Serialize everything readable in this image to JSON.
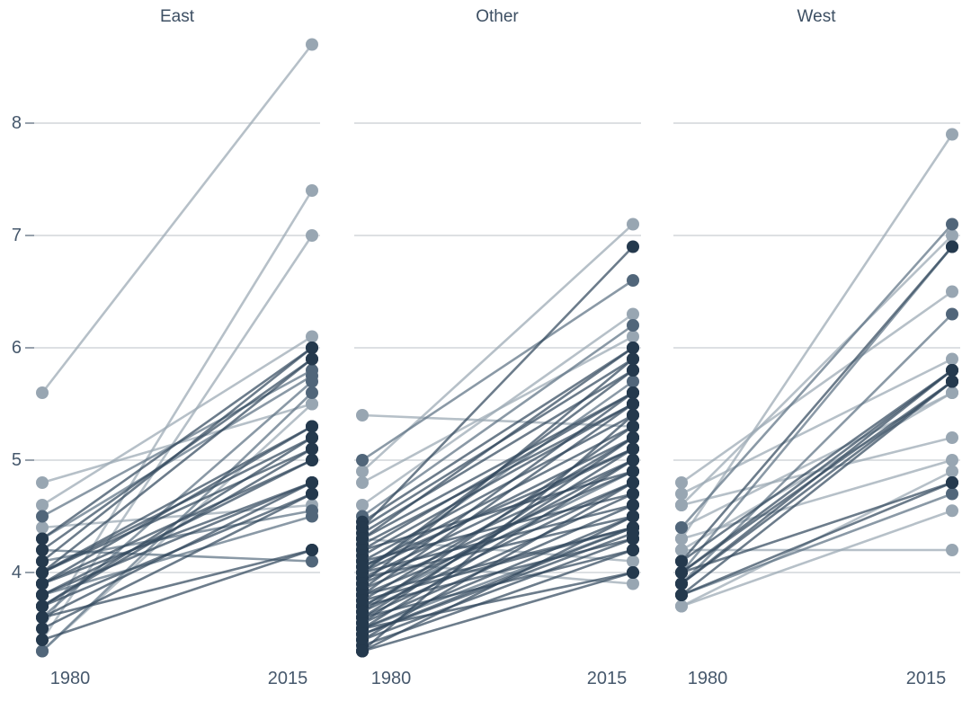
{
  "chart_data": {
    "type": "line",
    "subtype": "slopegraph",
    "title": "",
    "xlabel": "",
    "ylabel": "",
    "x_tick_labels": [
      "1980",
      "2015"
    ],
    "y_ticks": [
      4,
      5,
      6,
      7,
      8
    ],
    "ylim": [
      3.2,
      8.8
    ],
    "grid": "horizontal-only",
    "legend_position": "none",
    "shades": [
      "light",
      "mid",
      "dark"
    ],
    "colors": {
      "dot_light": "#98a6b2",
      "dot_mid": "#51667a",
      "dot_dark": "#24394d",
      "line_light": "#9aa8b3",
      "line_mid": "#5d7284",
      "line_dark": "#33495e",
      "gridline": "#d8dbdf",
      "tick_mark": "#97a1ac",
      "tick_label": "#46586c",
      "facet_title": "#3d4f63",
      "background": "#ffffff"
    },
    "facets": [
      {
        "name": "East",
        "lines": [
          [
            5.6,
            8.7,
            0
          ],
          [
            3.5,
            7.4,
            0
          ],
          [
            3.4,
            7.0,
            0
          ],
          [
            4.8,
            5.5,
            0
          ],
          [
            4.6,
            6.1,
            0
          ],
          [
            4.4,
            4.6,
            0
          ],
          [
            3.3,
            5.5,
            0
          ],
          [
            4.5,
            5.8,
            1
          ],
          [
            4.3,
            5.75,
            1
          ],
          [
            3.6,
            5.7,
            1
          ],
          [
            3.3,
            5.6,
            1
          ],
          [
            4.1,
            4.55,
            1
          ],
          [
            3.8,
            4.5,
            1
          ],
          [
            4.2,
            4.1,
            1
          ],
          [
            4.3,
            6.0,
            2
          ],
          [
            4.2,
            5.9,
            2
          ],
          [
            4.1,
            6.0,
            2
          ],
          [
            4.0,
            5.9,
            2
          ],
          [
            4.0,
            5.3,
            2
          ],
          [
            4.0,
            5.2,
            2
          ],
          [
            4.0,
            5.1,
            2
          ],
          [
            3.9,
            5.0,
            2
          ],
          [
            3.9,
            5.3,
            2
          ],
          [
            3.8,
            5.0,
            2
          ],
          [
            3.8,
            4.8,
            2
          ],
          [
            3.7,
            4.7,
            2
          ],
          [
            3.7,
            5.2,
            2
          ],
          [
            3.6,
            4.8,
            2
          ],
          [
            3.6,
            4.2,
            2
          ],
          [
            3.5,
            4.7,
            2
          ],
          [
            3.4,
            4.2,
            2
          ],
          [
            3.7,
            5.1,
            2
          ],
          [
            3.9,
            4.8,
            2
          ]
        ]
      },
      {
        "name": "Other",
        "lines": [
          [
            5.4,
            5.3,
            0
          ],
          [
            4.9,
            7.1,
            0
          ],
          [
            4.8,
            6.1,
            0
          ],
          [
            4.6,
            6.3,
            0
          ],
          [
            4.3,
            4.1,
            0
          ],
          [
            4.1,
            3.9,
            0
          ],
          [
            5.0,
            6.6,
            1
          ],
          [
            4.5,
            6.2,
            1
          ],
          [
            4.0,
            5.7,
            1
          ],
          [
            3.7,
            4.9,
            1
          ],
          [
            3.5,
            4.4,
            1
          ],
          [
            4.4,
            6.9,
            2
          ],
          [
            4.45,
            6.0,
            2
          ],
          [
            4.4,
            5.9,
            2
          ],
          [
            4.35,
            5.8,
            2
          ],
          [
            4.3,
            5.6,
            2
          ],
          [
            4.3,
            6.0,
            2
          ],
          [
            4.25,
            5.5,
            2
          ],
          [
            4.2,
            5.6,
            2
          ],
          [
            4.2,
            4.9,
            2
          ],
          [
            4.15,
            5.5,
            2
          ],
          [
            4.1,
            5.4,
            2
          ],
          [
            4.1,
            4.7,
            2
          ],
          [
            4.05,
            5.3,
            2
          ],
          [
            4.0,
            5.2,
            2
          ],
          [
            4.0,
            4.6,
            2
          ],
          [
            4.0,
            5.8,
            2
          ],
          [
            3.95,
            5.1,
            2
          ],
          [
            3.95,
            4.5,
            2
          ],
          [
            3.9,
            5.0,
            2
          ],
          [
            3.9,
            5.9,
            2
          ],
          [
            3.85,
            4.9,
            2
          ],
          [
            3.85,
            5.6,
            2
          ],
          [
            3.8,
            4.8,
            2
          ],
          [
            3.8,
            5.5,
            2
          ],
          [
            3.8,
            4.4,
            2
          ],
          [
            3.75,
            5.2,
            2
          ],
          [
            3.7,
            5.0,
            2
          ],
          [
            3.7,
            4.3,
            2
          ],
          [
            3.65,
            4.8,
            2
          ],
          [
            3.6,
            4.7,
            2
          ],
          [
            3.6,
            5.1,
            2
          ],
          [
            3.6,
            4.2,
            2
          ],
          [
            3.55,
            4.6,
            2
          ],
          [
            3.5,
            4.5,
            2
          ],
          [
            3.5,
            5.0,
            2
          ],
          [
            3.5,
            4.0,
            2
          ],
          [
            3.45,
            4.4,
            2
          ],
          [
            3.4,
            4.3,
            2
          ],
          [
            3.4,
            4.8,
            2
          ],
          [
            3.35,
            4.2,
            2
          ],
          [
            3.3,
            4.5,
            2
          ],
          [
            3.3,
            4.0,
            2
          ],
          [
            3.3,
            5.4,
            2
          ],
          [
            3.75,
            4.4,
            2
          ],
          [
            4.05,
            5.1,
            2
          ],
          [
            3.55,
            5.2,
            2
          ],
          [
            3.65,
            5.3,
            2
          ],
          [
            3.45,
            4.35,
            2
          ]
        ]
      },
      {
        "name": "West",
        "lines": [
          [
            4.3,
            7.9,
            0
          ],
          [
            4.6,
            7.0,
            0
          ],
          [
            4.8,
            6.5,
            0
          ],
          [
            4.7,
            5.9,
            0
          ],
          [
            4.2,
            5.6,
            0
          ],
          [
            4.6,
            5.2,
            0
          ],
          [
            3.7,
            4.9,
            0
          ],
          [
            3.7,
            4.55,
            0
          ],
          [
            4.2,
            4.2,
            0
          ],
          [
            4.3,
            5.0,
            0
          ],
          [
            4.4,
            5.6,
            0
          ],
          [
            4.4,
            7.1,
            1
          ],
          [
            4.0,
            6.9,
            1
          ],
          [
            3.9,
            6.3,
            1
          ],
          [
            3.8,
            4.7,
            1
          ],
          [
            4.1,
            5.8,
            2
          ],
          [
            4.0,
            5.7,
            2
          ],
          [
            4.0,
            5.8,
            2
          ],
          [
            3.9,
            5.7,
            2
          ],
          [
            3.8,
            4.8,
            2
          ],
          [
            4.0,
            4.8,
            2
          ],
          [
            3.9,
            5.8,
            2
          ],
          [
            3.8,
            5.7,
            2
          ],
          [
            4.1,
            6.9,
            2
          ]
        ]
      }
    ]
  }
}
